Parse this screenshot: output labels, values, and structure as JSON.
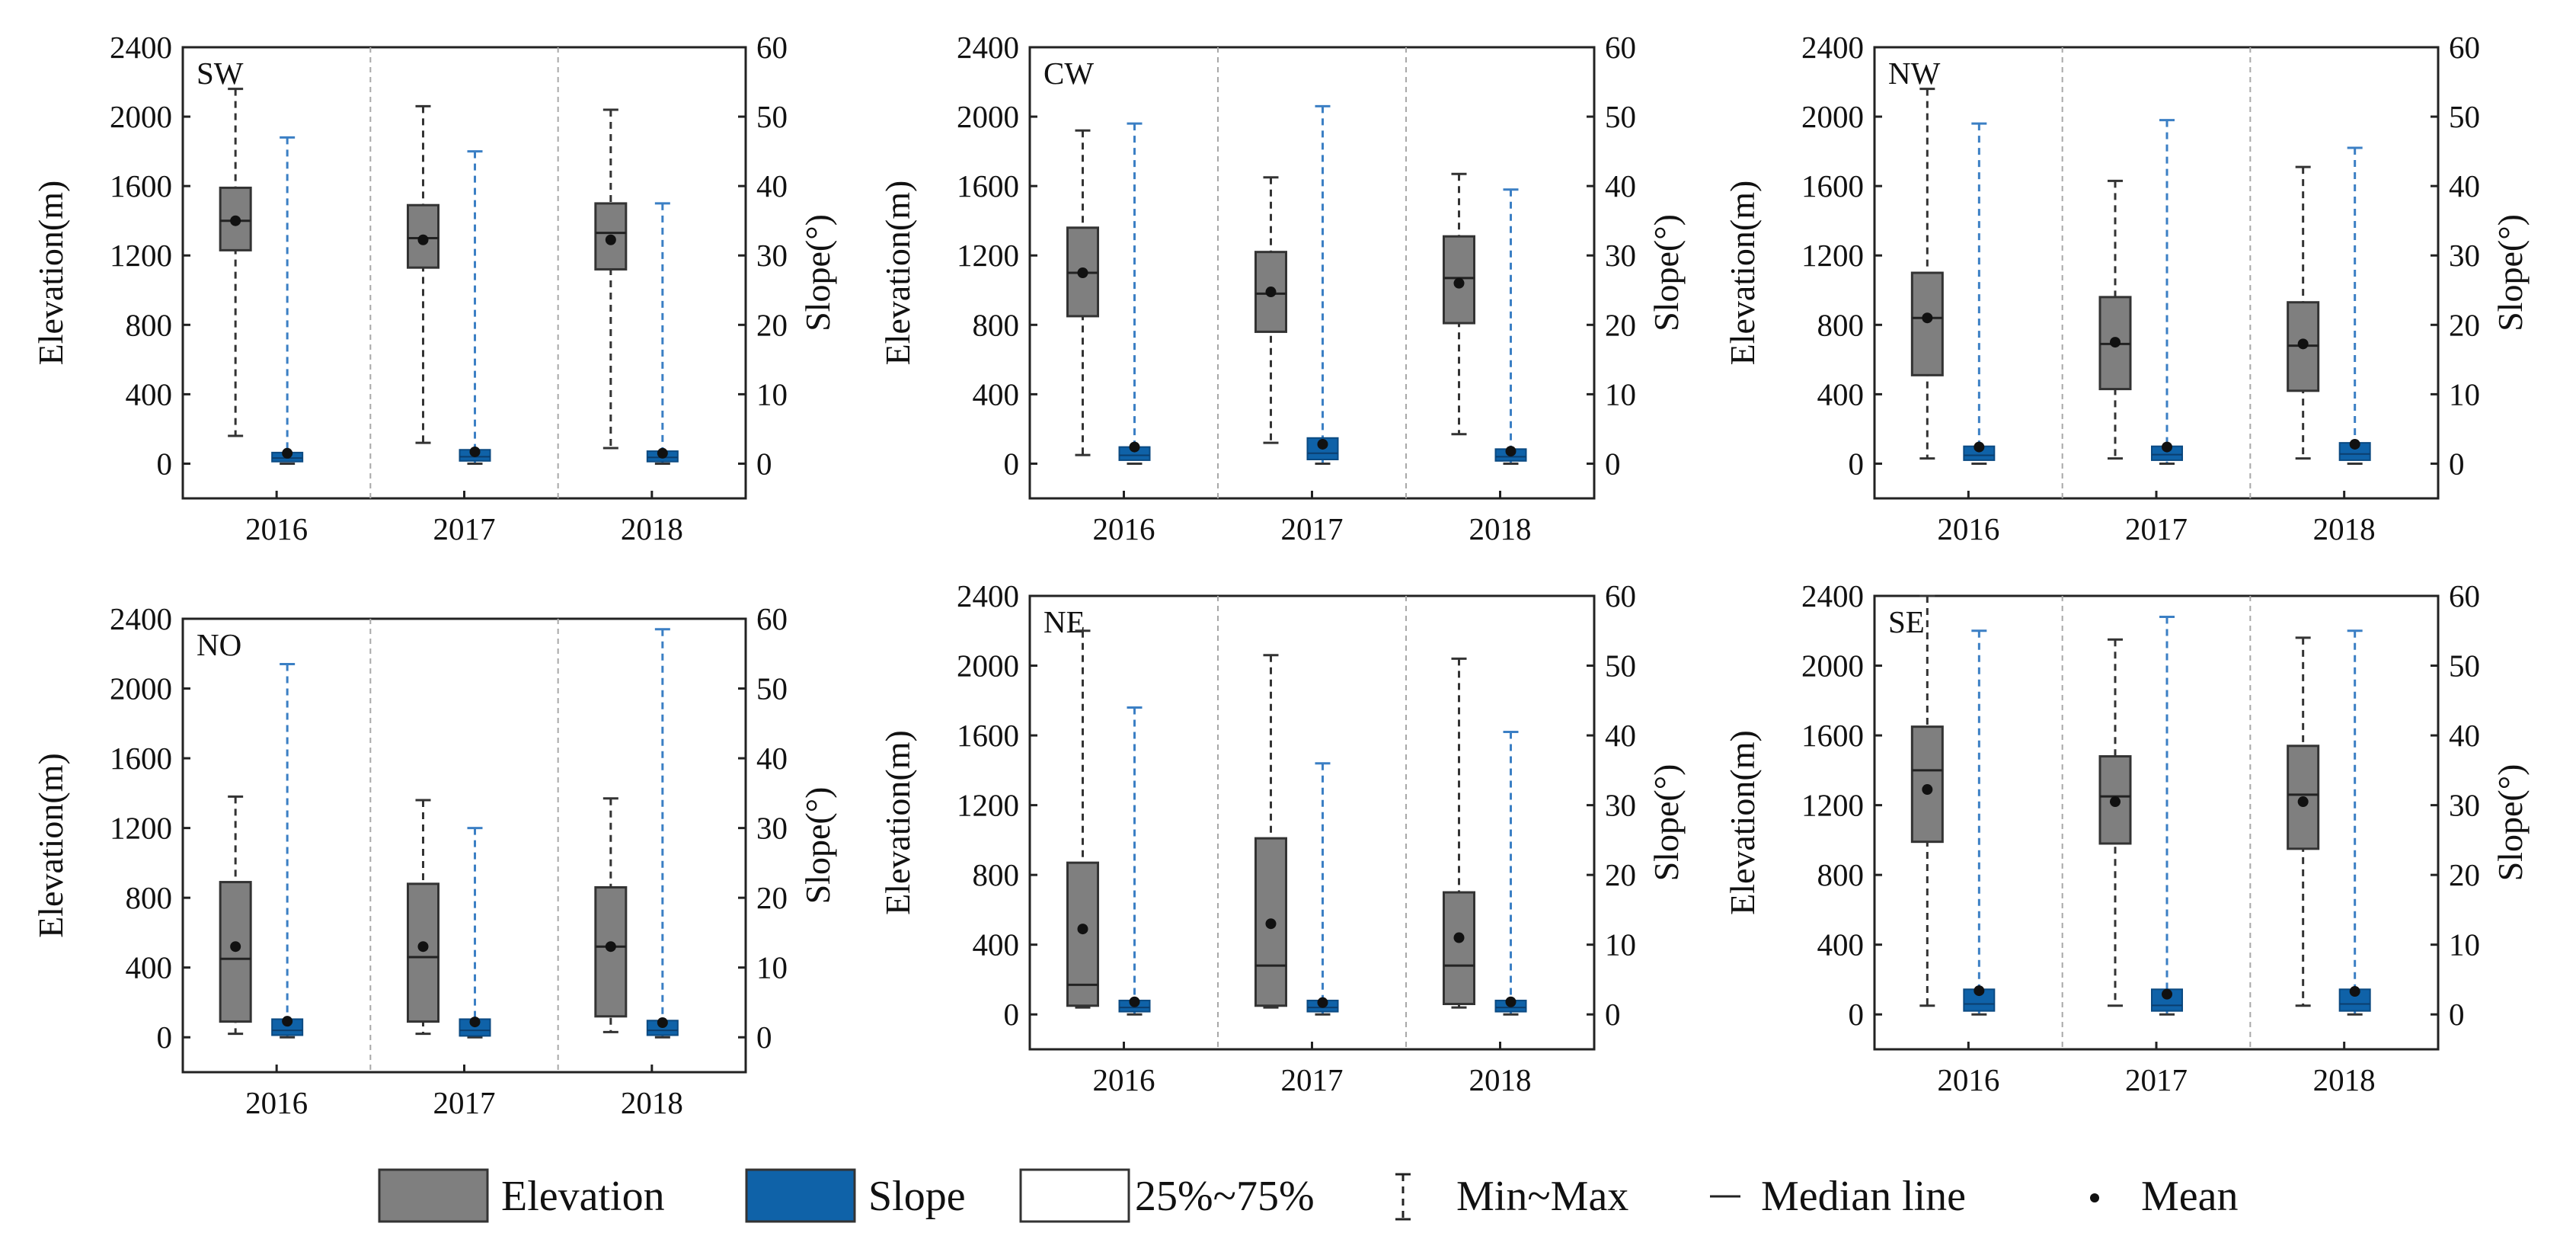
{
  "chart_data": {
    "type": "boxplot",
    "categories": [
      "2016",
      "2017",
      "2018"
    ],
    "left_axis": {
      "label": "Elevation(m)",
      "ylim": [
        -200,
        2400
      ],
      "ticks": [
        "0",
        "400",
        "800",
        "1200",
        "1600",
        "2000",
        "2400"
      ]
    },
    "right_axis": {
      "label": "Slope(°)",
      "ylim": [
        -5,
        60
      ],
      "ticks": [
        "0",
        "10",
        "20",
        "30",
        "40",
        "50",
        "60"
      ]
    },
    "colors": {
      "elevation": "#7f7f7f",
      "slope": "#0f62a8",
      "slope_whisker": "#3b7fc4",
      "elevation_whisker": "#333333"
    },
    "panels": [
      {
        "name": "SW",
        "elevation": [
          {
            "min": 160,
            "q1": 1230,
            "median": 1400,
            "q3": 1590,
            "max": 2160,
            "mean": 1400
          },
          {
            "min": 120,
            "q1": 1130,
            "median": 1300,
            "q3": 1490,
            "max": 2060,
            "mean": 1290
          },
          {
            "min": 90,
            "q1": 1120,
            "median": 1330,
            "q3": 1500,
            "max": 2040,
            "mean": 1290
          }
        ],
        "slope": [
          {
            "min": 0,
            "q1": 0.3,
            "median": 0.8,
            "q3": 1.6,
            "max": 47,
            "mean": 1.5
          },
          {
            "min": 0,
            "q1": 0.4,
            "median": 1.0,
            "q3": 2.0,
            "max": 45,
            "mean": 1.7
          },
          {
            "min": 0,
            "q1": 0.3,
            "median": 0.9,
            "q3": 1.8,
            "max": 37.5,
            "mean": 1.5
          }
        ]
      },
      {
        "name": "CW",
        "elevation": [
          {
            "min": 50,
            "q1": 850,
            "median": 1100,
            "q3": 1360,
            "max": 1920,
            "mean": 1100
          },
          {
            "min": 120,
            "q1": 760,
            "median": 980,
            "q3": 1220,
            "max": 1650,
            "mean": 990
          },
          {
            "min": 170,
            "q1": 810,
            "median": 1070,
            "q3": 1310,
            "max": 1670,
            "mean": 1040
          }
        ],
        "slope": [
          {
            "min": 0,
            "q1": 0.5,
            "median": 1.2,
            "q3": 2.4,
            "max": 49,
            "mean": 2.4
          },
          {
            "min": 0,
            "q1": 0.6,
            "median": 1.5,
            "q3": 3.7,
            "max": 51.5,
            "mean": 2.8
          },
          {
            "min": 0,
            "q1": 0.4,
            "median": 1.0,
            "q3": 2.1,
            "max": 39.5,
            "mean": 1.8
          }
        ]
      },
      {
        "name": "NW",
        "elevation": [
          {
            "min": 30,
            "q1": 510,
            "median": 840,
            "q3": 1100,
            "max": 2160,
            "mean": 840
          },
          {
            "min": 30,
            "q1": 430,
            "median": 690,
            "q3": 960,
            "max": 1630,
            "mean": 700
          },
          {
            "min": 30,
            "q1": 420,
            "median": 680,
            "q3": 930,
            "max": 1710,
            "mean": 690
          }
        ],
        "slope": [
          {
            "min": 0,
            "q1": 0.5,
            "median": 1.2,
            "q3": 2.5,
            "max": 49,
            "mean": 2.4
          },
          {
            "min": 0,
            "q1": 0.5,
            "median": 1.3,
            "q3": 2.5,
            "max": 49.5,
            "mean": 2.4
          },
          {
            "min": 0,
            "q1": 0.5,
            "median": 1.4,
            "q3": 3.0,
            "max": 45.5,
            "mean": 2.8
          }
        ]
      },
      {
        "name": "NO",
        "elevation": [
          {
            "min": 20,
            "q1": 90,
            "median": 450,
            "q3": 890,
            "max": 1380,
            "mean": 520
          },
          {
            "min": 20,
            "q1": 90,
            "median": 460,
            "q3": 880,
            "max": 1360,
            "mean": 520
          },
          {
            "min": 30,
            "q1": 120,
            "median": 520,
            "q3": 860,
            "max": 1370,
            "mean": 520
          }
        ],
        "slope": [
          {
            "min": 0,
            "q1": 0.3,
            "median": 1.0,
            "q3": 2.6,
            "max": 53.5,
            "mean": 2.3
          },
          {
            "min": 0,
            "q1": 0.2,
            "median": 1.0,
            "q3": 2.6,
            "max": 30,
            "mean": 2.2
          },
          {
            "min": 0,
            "q1": 0.3,
            "median": 1.0,
            "q3": 2.4,
            "max": 58.5,
            "mean": 2.1
          }
        ]
      },
      {
        "name": "NE",
        "elevation": [
          {
            "min": 40,
            "q1": 50,
            "median": 170,
            "q3": 870,
            "max": 2200,
            "mean": 490
          },
          {
            "min": 40,
            "q1": 50,
            "median": 280,
            "q3": 1010,
            "max": 2060,
            "mean": 520
          },
          {
            "min": 40,
            "q1": 60,
            "median": 280,
            "q3": 700,
            "max": 2040,
            "mean": 440
          }
        ],
        "slope": [
          {
            "min": 0,
            "q1": 0.4,
            "median": 1.0,
            "q3": 2.0,
            "max": 44,
            "mean": 1.8
          },
          {
            "min": 0,
            "q1": 0.4,
            "median": 1.0,
            "q3": 2.0,
            "max": 36,
            "mean": 1.7
          },
          {
            "min": 0,
            "q1": 0.4,
            "median": 1.0,
            "q3": 2.0,
            "max": 40.5,
            "mean": 1.8
          }
        ]
      },
      {
        "name": "SE",
        "elevation": [
          {
            "min": 50,
            "q1": 990,
            "median": 1400,
            "q3": 1650,
            "max": 2400,
            "mean": 1290
          },
          {
            "min": 50,
            "q1": 980,
            "median": 1250,
            "q3": 1480,
            "max": 2150,
            "mean": 1220
          },
          {
            "min": 50,
            "q1": 950,
            "median": 1260,
            "q3": 1540,
            "max": 2160,
            "mean": 1220
          }
        ],
        "slope": [
          {
            "min": 0,
            "q1": 0.5,
            "median": 1.5,
            "q3": 3.6,
            "max": 55,
            "mean": 3.4
          },
          {
            "min": 0,
            "q1": 0.5,
            "median": 1.3,
            "q3": 3.6,
            "max": 57,
            "mean": 2.9
          },
          {
            "min": 0,
            "q1": 0.5,
            "median": 1.5,
            "q3": 3.6,
            "max": 55,
            "mean": 3.3
          }
        ]
      }
    ],
    "legend": {
      "elevation": "Elevation",
      "slope": "Slope",
      "box": "25%~75%",
      "whisker": "Min~Max",
      "median": "Median line",
      "mean": "Mean"
    }
  }
}
